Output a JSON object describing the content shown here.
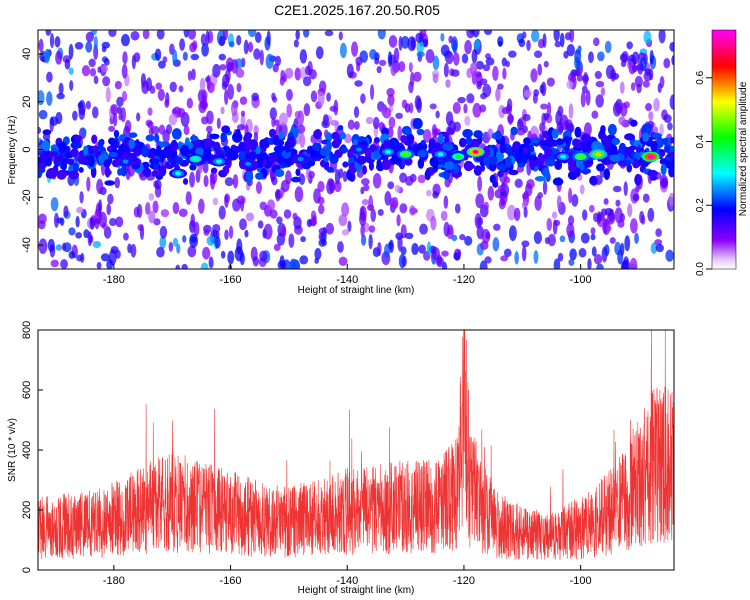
{
  "title": "C2E1.2025.167.20.50.R05",
  "colorbar": {
    "label": "Normalized spectral amplitude",
    "ticks": [
      "0.0",
      "0.2",
      "0.4",
      "0.6"
    ],
    "tick_values": [
      0.0,
      0.2,
      0.4,
      0.6
    ],
    "range": [
      0.0,
      0.75
    ]
  },
  "chart_data": [
    {
      "type": "heatmap",
      "xlabel": "Height of straight line (km)",
      "ylabel": "Frequency (Hz)",
      "xlim": [
        -193,
        -84
      ],
      "ylim": [
        -50,
        50
      ],
      "xticks": [
        -180,
        -160,
        -140,
        -120,
        -100
      ],
      "yticks": [
        -40,
        -20,
        0,
        20,
        40
      ],
      "colormap": [
        "#ffffff",
        "#8b00ff",
        "#0000ff",
        "#00ffff",
        "#00ff00",
        "#ffff00",
        "#ff0000",
        "#ff00ff"
      ],
      "band_center_hz": -2,
      "hotspots": [
        {
          "x": -88,
          "y": -3,
          "v": 0.75
        },
        {
          "x": -97,
          "y": -2,
          "v": 0.55
        },
        {
          "x": -100,
          "y": -3,
          "v": 0.45
        },
        {
          "x": -103,
          "y": -3,
          "v": 0.3
        },
        {
          "x": -118,
          "y": -1,
          "v": 0.7
        },
        {
          "x": -121,
          "y": -3,
          "v": 0.4
        },
        {
          "x": -124,
          "y": -2,
          "v": 0.3
        },
        {
          "x": -130,
          "y": -2,
          "v": 0.45
        },
        {
          "x": -133,
          "y": -1,
          "v": 0.3
        },
        {
          "x": -138,
          "y": 0,
          "v": 0.25
        },
        {
          "x": -148,
          "y": -4,
          "v": 0.25
        },
        {
          "x": -157,
          "y": -6,
          "v": 0.25
        },
        {
          "x": -162,
          "y": -5,
          "v": 0.3
        },
        {
          "x": -166,
          "y": -4,
          "v": 0.35
        },
        {
          "x": -169,
          "y": -10,
          "v": 0.3
        },
        {
          "x": -178,
          "y": -5,
          "v": 0.25
        }
      ]
    },
    {
      "type": "line",
      "xlabel": "Height of straight line (km)",
      "ylabel": "SNR (10 * v/v)",
      "xlim": [
        -193,
        -84
      ],
      "ylim": [
        0,
        800
      ],
      "xticks": [
        -180,
        -160,
        -140,
        -120,
        -100
      ],
      "yticks": [
        0,
        200,
        400,
        600,
        800
      ],
      "series": [
        {
          "color": "#ee3333",
          "envelope_x": [
            -193,
            -185,
            -180,
            -175,
            -170,
            -165,
            -160,
            -155,
            -150,
            -145,
            -140,
            -135,
            -130,
            -125,
            -121,
            -120,
            -119,
            -117,
            -115,
            -110,
            -105,
            -100,
            -95,
            -92,
            -90,
            -88,
            -86,
            -84
          ],
          "envelope_y": [
            140,
            150,
            170,
            200,
            230,
            210,
            190,
            170,
            160,
            175,
            195,
            200,
            215,
            210,
            260,
            600,
            280,
            230,
            160,
            120,
            110,
            140,
            190,
            240,
            300,
            340,
            360,
            350
          ]
        }
      ]
    }
  ]
}
